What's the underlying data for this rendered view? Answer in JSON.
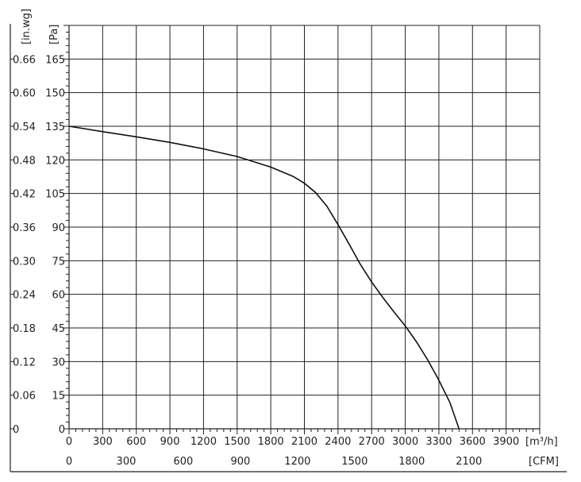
{
  "chart_data": {
    "type": "line",
    "title": "",
    "grid": true,
    "y_units": {
      "inwg": "[in.wg]",
      "pa": "[Pa]"
    },
    "x_units": {
      "m3h": "[m³/h]",
      "cfm": "[CFM]"
    },
    "y_range_pa": [
      0,
      180
    ],
    "x_range_m3h": [
      0,
      4200
    ],
    "y_ticks_pa": [
      "0",
      "15",
      "30",
      "45",
      "60",
      "75",
      "90",
      "105",
      "120",
      "135",
      "150",
      "165"
    ],
    "y_ticks_inwg": [
      "0",
      "0.06",
      "0.12",
      "0.18",
      "0.24",
      "0.30",
      "0.36",
      "0.42",
      "0.48",
      "0.54",
      "0.60",
      "0.66"
    ],
    "x_ticks_m3h": [
      "0",
      "300",
      "600",
      "900",
      "1200",
      "1500",
      "1800",
      "2100",
      "2400",
      "2700",
      "3000",
      "3300",
      "3600",
      "3900"
    ],
    "x_ticks_cfm": [
      "0",
      "300",
      "600",
      "900",
      "1200",
      "1500",
      "1800",
      "2100"
    ],
    "series": [
      {
        "x": [
          0,
          300,
          600,
          900,
          1200,
          1500,
          1800,
          2000,
          2100,
          2200,
          2300,
          2400,
          2500,
          2600,
          2700,
          2800,
          2900,
          3000,
          3100,
          3200,
          3300,
          3400,
          3480
        ],
        "y": [
          135,
          132.6,
          130.3,
          127.8,
          124.9,
          121.5,
          116.8,
          112.6,
          109.6,
          105.4,
          99.4,
          91.1,
          82.3,
          73.3,
          65.5,
          58.6,
          52.1,
          45.9,
          38.8,
          30.8,
          21.7,
          11.6,
          0
        ]
      }
    ]
  }
}
